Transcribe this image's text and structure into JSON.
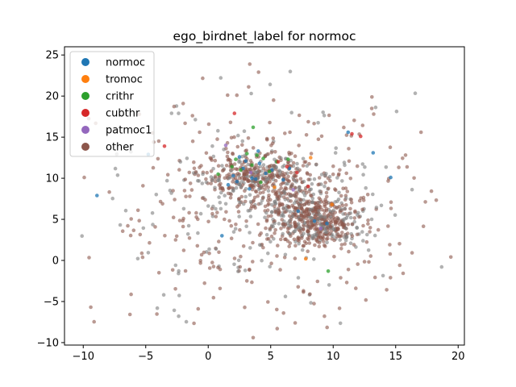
{
  "chart_data": {
    "type": "scatter",
    "title": "ego_birdnet_label for normoc",
    "xlabel": "",
    "ylabel": "",
    "xlim": [
      -11.5,
      20.5
    ],
    "ylim": [
      -10.3,
      26.0
    ],
    "xticks": [
      -10,
      -5,
      0,
      5,
      10,
      15,
      20
    ],
    "yticks": [
      -10,
      -5,
      0,
      5,
      10,
      15,
      20,
      25
    ],
    "grid": false,
    "legend_position": "top-left",
    "point_alpha": 0.6,
    "series": [
      {
        "name": "normoc",
        "color": "#1f77b4",
        "values": [
          [
            2.0,
            10.3
          ],
          [
            2.8,
            11.2
          ],
          [
            3.5,
            10.0
          ],
          [
            4.1,
            11.8
          ],
          [
            1.6,
            9.2
          ],
          [
            3.0,
            12.1
          ],
          [
            4.6,
            10.6
          ],
          [
            2.3,
            9.6
          ],
          [
            3.8,
            9.9
          ],
          [
            5.1,
            11.0
          ],
          [
            2.5,
            12.6
          ],
          [
            3.3,
            8.7
          ],
          [
            6.0,
            9.8
          ],
          [
            7.2,
            6.0
          ],
          [
            8.5,
            4.8
          ],
          [
            -8.9,
            7.9
          ],
          [
            13.2,
            13.1
          ],
          [
            14.6,
            10.1
          ],
          [
            -4.8,
            12.9
          ],
          [
            11.2,
            15.6
          ],
          [
            9.5,
            4.5
          ],
          [
            1.1,
            3.0
          ],
          [
            6.5,
            11.2
          ],
          [
            4.0,
            13.3
          ]
        ]
      },
      {
        "name": "tromoc",
        "color": "#ff7f0e",
        "values": [
          [
            8.2,
            12.5
          ],
          [
            9.9,
            6.8
          ],
          [
            7.8,
            0.2
          ],
          [
            5.3,
            8.9
          ]
        ]
      },
      {
        "name": "crithr",
        "color": "#2ca02c",
        "values": [
          [
            3.5,
            11.6
          ],
          [
            4.4,
            12.4
          ],
          [
            2.6,
            11.0
          ],
          [
            4.9,
            10.8
          ],
          [
            3.9,
            12.8
          ],
          [
            1.9,
            11.4
          ],
          [
            5.5,
            12.0
          ],
          [
            3.1,
            13.0
          ],
          [
            4.2,
            9.5
          ],
          [
            0.8,
            10.5
          ],
          [
            3.6,
            16.2
          ],
          [
            9.6,
            -1.3
          ],
          [
            6.4,
            12.3
          ],
          [
            2.2,
            12.3
          ]
        ]
      },
      {
        "name": "cubthr",
        "color": "#d62728",
        "values": [
          [
            5.6,
            12.0
          ],
          [
            6.3,
            11.4
          ],
          [
            11.5,
            15.4
          ],
          [
            -3.5,
            13.9
          ],
          [
            2.1,
            17.9
          ],
          [
            8.0,
            9.0
          ],
          [
            7.1,
            10.7
          ],
          [
            12.2,
            15.1
          ]
        ]
      },
      {
        "name": "patmoc1",
        "color": "#9467bd",
        "values": [
          [
            3.4,
            10.7
          ],
          [
            6.8,
            8.6
          ],
          [
            1.4,
            14.0
          ],
          [
            9.0,
            3.9
          ]
        ]
      }
    ],
    "other_series": {
      "name": "other",
      "color": "#8c564b"
    }
  },
  "legend_items": [
    {
      "label": "normoc",
      "color": "#1f77b4"
    },
    {
      "label": "tromoc",
      "color": "#ff7f0e"
    },
    {
      "label": "crithr",
      "color": "#2ca02c"
    },
    {
      "label": "cubthr",
      "color": "#d62728"
    },
    {
      "label": "patmoc1",
      "color": "#9467bd"
    },
    {
      "label": "other",
      "color": "#8c564b"
    }
  ],
  "mixed_color": "#7f7f7f"
}
